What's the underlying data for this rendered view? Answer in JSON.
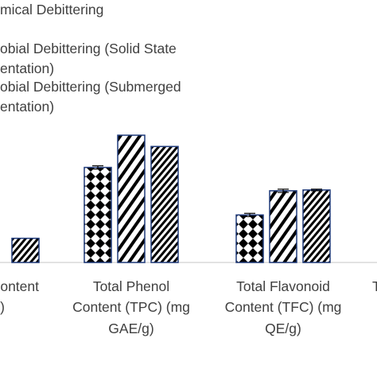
{
  "chart_data": {
    "type": "bar",
    "categories": [
      {
        "lines": [
          "Content",
          "g)"
        ],
        "full_label": "Content g)"
      },
      {
        "lines": [
          "Total Phenol",
          "Content (TPC) (mg",
          "GAE/g)"
        ],
        "full_label": "Total Phenol Content (TPC) (mg GAE/g)"
      },
      {
        "lines": [
          "Total Flavonoid",
          "Content (TFC) (mg",
          "QE/g)"
        ],
        "full_label": "Total Flavonoid Content (TFC) (mg QE/g)"
      },
      {
        "lines": [
          "T"
        ],
        "full_label": "T"
      }
    ],
    "series": [
      {
        "name": "Chemical Debittering",
        "legend_lines": [
          "mical Debittering"
        ],
        "pattern": "diamond",
        "values": [
          null,
          118,
          59,
          null
        ],
        "errors": [
          null,
          2,
          2,
          null
        ]
      },
      {
        "name": "Microbial Debittering (Solid State Fermentation)",
        "legend_lines": [
          "obial Debittering (Solid State",
          "entation)"
        ],
        "pattern": "stripe-wide",
        "values": [
          null,
          158,
          89,
          null
        ],
        "errors": [
          null,
          0,
          2,
          null
        ]
      },
      {
        "name": "Microbial Debittering (Submerged Fermentation)",
        "legend_lines": [
          "obial Debittering (Submerged",
          "entation)"
        ],
        "pattern": "stripe-fine",
        "values": [
          30,
          144,
          90,
          null
        ],
        "errors": [
          null,
          0,
          1,
          null
        ]
      }
    ],
    "ylim": [
      0,
      200
    ],
    "grid": false,
    "legend_position": "top",
    "colors": {
      "bar_outline": "#1f3a7a",
      "hatch": "#000000",
      "axis": "#d9d9d9",
      "text": "#404040"
    }
  }
}
